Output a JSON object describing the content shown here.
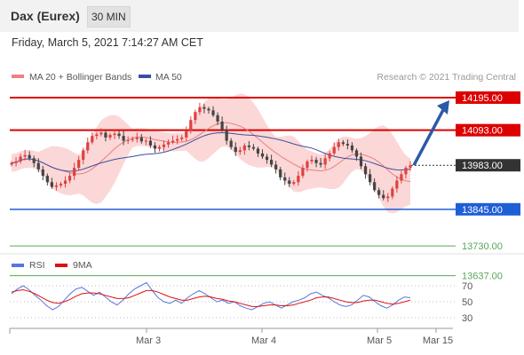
{
  "header": {
    "instrument": "Dax (Eurex)",
    "timeframe": "30 MIN"
  },
  "datetime": "Friday, March 5, 2021 7:14:27 AM CET",
  "credit": "Research © 2021 Trading Central",
  "colors": {
    "resistance": "#dd0000",
    "support": "#1f5fd6",
    "target": "#5aa55a",
    "current": "#333333",
    "bollinger_fill": "#f9caca",
    "ma20": "#e88080",
    "ma50": "#3a4fa0",
    "arrow": "#2a5aa8",
    "candle_up": "#e04040",
    "candle_down": "#444444",
    "rsi": "#5577dd",
    "rsi_ma": "#dd1111"
  },
  "chart_data": [
    {
      "type": "candlestick",
      "x_labels": [
        "Mar 3",
        "Mar 4",
        "Mar 5",
        "Mar 15"
      ],
      "legend": [
        {
          "name": "MA 20 + Bollinger Bands",
          "color": "#f08080"
        },
        {
          "name": "MA 50",
          "color": "#3a4fa0"
        }
      ],
      "price_levels": [
        {
          "value": 14195.0,
          "label": "14195.00",
          "kind": "resistance"
        },
        {
          "value": 14093.0,
          "label": "14093.00",
          "kind": "resistance"
        },
        {
          "value": 13983.0,
          "label": "13983.00",
          "kind": "current"
        },
        {
          "value": 13845.0,
          "label": "13845.00",
          "kind": "support"
        },
        {
          "value": 13730.0,
          "label": "13730.00",
          "kind": "target"
        },
        {
          "value": 13637.0,
          "label": "13637.00",
          "kind": "target"
        }
      ],
      "close_series": [
        13990,
        13995,
        14010,
        14015,
        14005,
        13990,
        13970,
        13950,
        13930,
        13915,
        13920,
        13925,
        13935,
        13950,
        13975,
        14000,
        14030,
        14055,
        14075,
        14080,
        14085,
        14070,
        14078,
        14082,
        14075,
        14060,
        14062,
        14065,
        14070,
        14058,
        14060,
        14045,
        14035,
        14040,
        14048,
        14055,
        14060,
        14065,
        14070,
        14090,
        14125,
        14150,
        14165,
        14160,
        14155,
        14140,
        14120,
        14095,
        14060,
        14040,
        14025,
        14030,
        14045,
        14040,
        14035,
        14020,
        14010,
        14000,
        13985,
        13970,
        13945,
        13935,
        13925,
        13930,
        13950,
        13975,
        13995,
        14000,
        13990,
        13985,
        14005,
        14020,
        14040,
        14055,
        14050,
        14045,
        14030,
        14010,
        13980,
        13955,
        13930,
        13905,
        13890,
        13880,
        13885,
        13910,
        13935,
        13955,
        13975,
        13983
      ],
      "forecast_target": 14195.0,
      "series": [
        {
          "name": "MA 20 + Bollinger Bands"
        },
        {
          "name": "MA 50"
        }
      ]
    },
    {
      "type": "line",
      "legend": [
        {
          "name": "RSI",
          "color": "#5577dd"
        },
        {
          "name": "9MA",
          "color": "#dd1111"
        }
      ],
      "y_ticks": [
        "70",
        "50",
        "30"
      ],
      "ylim": [
        10,
        90
      ],
      "series": [
        {
          "name": "RSI",
          "values": [
            60,
            66,
            70,
            65,
            58,
            52,
            45,
            40,
            44,
            52,
            60,
            66,
            68,
            63,
            58,
            62,
            56,
            50,
            46,
            52,
            60,
            66,
            70,
            74,
            64,
            55,
            50,
            48,
            52,
            48,
            55,
            60,
            64,
            60,
            55,
            50,
            52,
            48,
            50,
            45,
            42,
            40,
            44,
            48,
            50,
            46,
            42,
            46,
            50,
            52,
            55,
            60,
            62,
            58,
            55,
            50,
            46,
            44,
            46,
            52,
            58,
            56,
            50,
            45,
            42,
            46,
            52,
            56,
            55
          ]
        },
        {
          "name": "9MA",
          "values": [
            62,
            64,
            65,
            63,
            60,
            56,
            52,
            49,
            48,
            50,
            53,
            57,
            60,
            61,
            61,
            60,
            58,
            56,
            54,
            54,
            55,
            58,
            61,
            64,
            64,
            62,
            59,
            56,
            54,
            52,
            52,
            54,
            56,
            57,
            56,
            54,
            53,
            51,
            50,
            48,
            46,
            44,
            44,
            45,
            46,
            46,
            45,
            45,
            46,
            48,
            50,
            52,
            55,
            56,
            56,
            54,
            52,
            50,
            49,
            49,
            51,
            52,
            52,
            50,
            48,
            47,
            48,
            50,
            52
          ]
        }
      ]
    }
  ]
}
